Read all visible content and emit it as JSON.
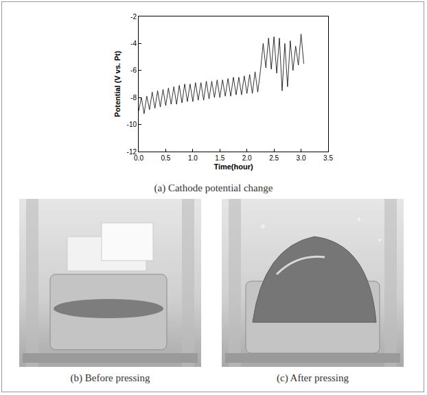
{
  "chart_data": {
    "type": "line",
    "x_label": "Time(hour)",
    "y_label": "Potential (V vs. Pt)",
    "x": [
      0.0,
      0.05,
      0.1,
      0.15,
      0.2,
      0.25,
      0.3,
      0.35,
      0.4,
      0.45,
      0.5,
      0.55,
      0.6,
      0.65,
      0.7,
      0.75,
      0.8,
      0.85,
      0.9,
      0.95,
      1.0,
      1.05,
      1.1,
      1.15,
      1.2,
      1.25,
      1.3,
      1.35,
      1.4,
      1.45,
      1.5,
      1.55,
      1.6,
      1.65,
      1.7,
      1.75,
      1.8,
      1.85,
      1.9,
      1.95,
      2.0,
      2.05,
      2.1,
      2.15,
      2.2,
      2.25,
      2.3,
      2.35,
      2.4,
      2.45,
      2.5,
      2.55,
      2.6,
      2.65,
      2.7,
      2.75,
      2.8,
      2.85,
      2.9,
      2.95,
      3.0,
      3.05
    ],
    "values": [
      -9.0,
      -8.0,
      -9.2,
      -7.9,
      -8.9,
      -7.6,
      -8.8,
      -7.5,
      -8.7,
      -7.4,
      -8.6,
      -7.3,
      -8.5,
      -7.2,
      -8.5,
      -7.1,
      -8.4,
      -7.0,
      -8.3,
      -7.0,
      -8.3,
      -6.9,
      -8.2,
      -6.9,
      -8.2,
      -6.8,
      -8.1,
      -6.8,
      -8.0,
      -6.7,
      -8.0,
      -6.7,
      -7.9,
      -6.6,
      -7.9,
      -6.5,
      -7.8,
      -6.5,
      -7.8,
      -6.4,
      -7.7,
      -6.3,
      -7.7,
      -6.1,
      -7.6,
      -6.0,
      -4.0,
      -5.8,
      -3.6,
      -5.9,
      -3.5,
      -6.2,
      -3.6,
      -7.5,
      -4.0,
      -7.2,
      -3.8,
      -6.0,
      -4.2,
      -5.6,
      -3.3,
      -5.5
    ],
    "color": "#000000",
    "xlim": [
      0,
      3.5
    ],
    "xticks": [
      {
        "value": 0,
        "label": "0.0"
      },
      {
        "value": 0.5,
        "label": "0.5"
      },
      {
        "value": 1,
        "label": "1.0"
      },
      {
        "value": 1.5,
        "label": "1.5"
      },
      {
        "value": 2,
        "label": "2.0"
      },
      {
        "value": 2.5,
        "label": "2.5"
      },
      {
        "value": 3,
        "label": "3.0"
      },
      {
        "value": 3.5,
        "label": "3.5"
      }
    ],
    "ylim": [
      -12,
      -2
    ],
    "yticks": [
      -12,
      -10,
      -8,
      -6,
      -4,
      -2
    ],
    "grid": false
  },
  "captions": [
    "(a) Cathode potential change",
    "(b) Before pressing",
    "(c) After pressing"
  ]
}
